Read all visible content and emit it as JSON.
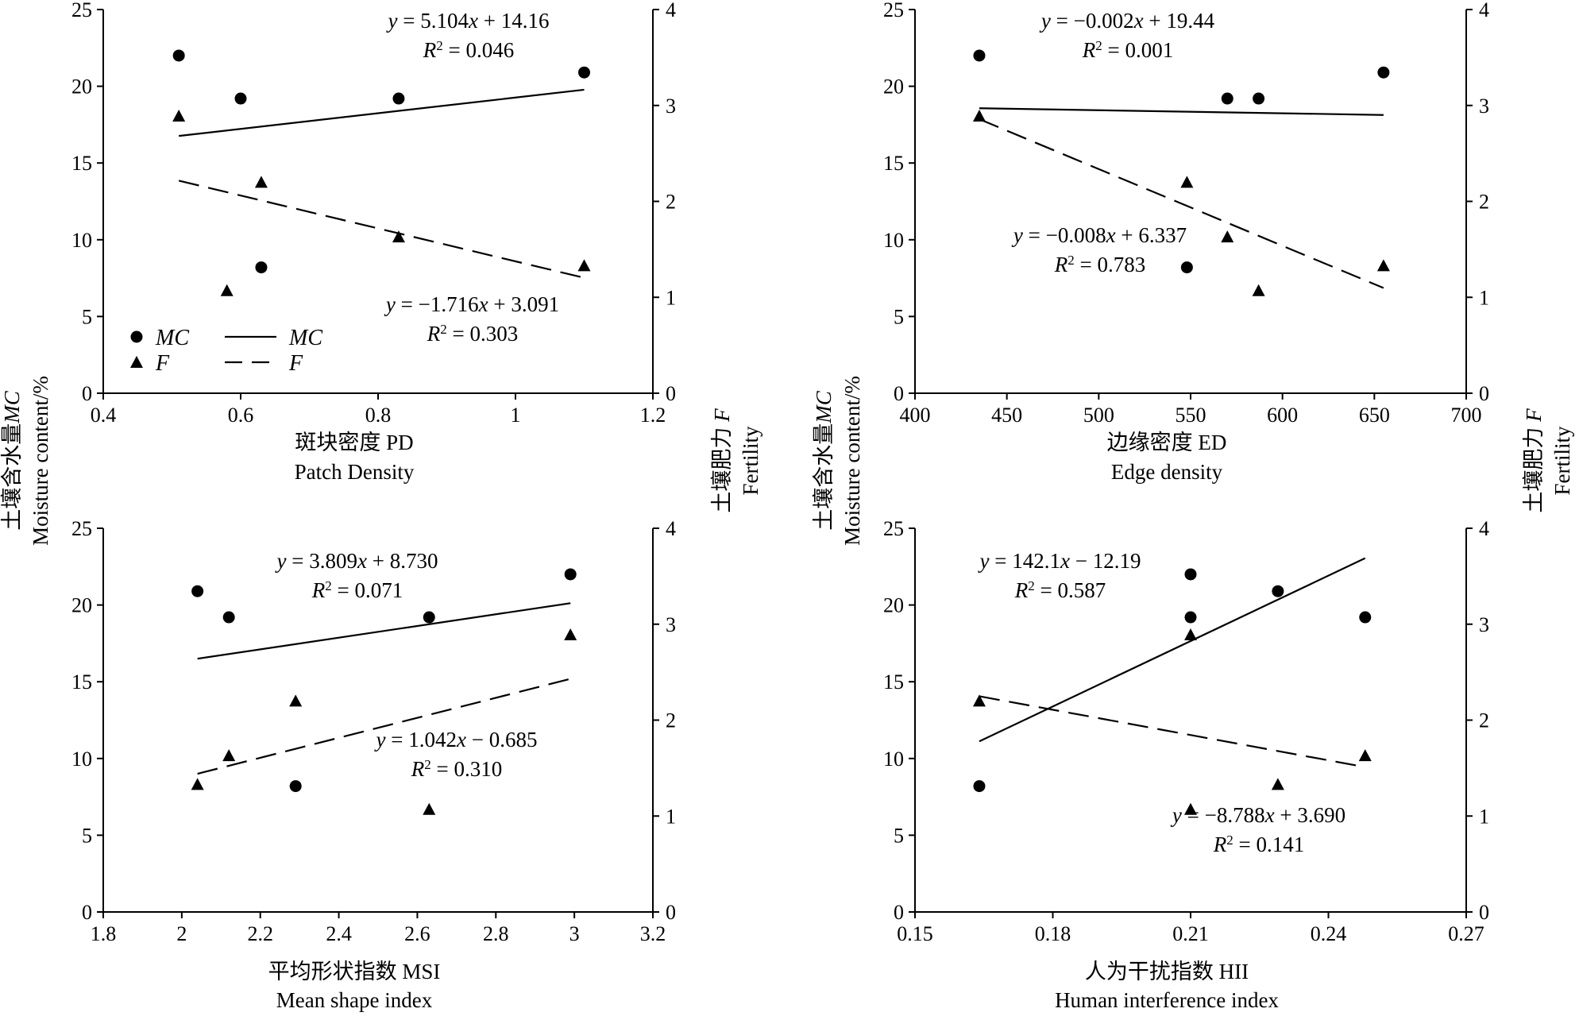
{
  "y_left_label": {
    "cn": "土壤含水量",
    "sym": "MC",
    "en": "Moisture content/%"
  },
  "y_right_label": {
    "cn": "土壤肥力",
    "sym": "F",
    "en": "Fertility"
  },
  "legend": {
    "mc_points": "MC",
    "f_points": "F",
    "mc_line": "MC",
    "f_line": "F"
  },
  "chart_data": [
    {
      "type": "scatter",
      "xlabel_cn": "斑块密度  PD",
      "xlabel_en": "Patch Density",
      "xlim": [
        0.4,
        1.2
      ],
      "xticks": [
        0.4,
        0.6,
        0.8,
        1.0,
        1.2
      ],
      "xtick_labels": [
        "0.4",
        "0.6",
        "0.8",
        "1",
        "1.2"
      ],
      "ylim_left": [
        0,
        25
      ],
      "yticks_left": [
        0,
        5,
        10,
        15,
        20,
        25
      ],
      "ylim_right": [
        0,
        4
      ],
      "yticks_right": [
        0,
        1,
        2,
        3,
        4
      ],
      "mc_points": [
        [
          0.51,
          22.0
        ],
        [
          0.6,
          19.2
        ],
        [
          0.63,
          8.2
        ],
        [
          0.83,
          19.2
        ],
        [
          1.1,
          20.9
        ]
      ],
      "f_points": [
        [
          0.51,
          2.89
        ],
        [
          0.58,
          1.07
        ],
        [
          0.63,
          2.2
        ],
        [
          0.83,
          1.63
        ],
        [
          1.1,
          1.33
        ]
      ],
      "mc_fit": {
        "slope": 5.104,
        "intercept": 14.16,
        "x_range": [
          0.51,
          1.1
        ]
      },
      "f_fit": {
        "slope": -1.716,
        "intercept": 3.091,
        "x_range": [
          0.51,
          1.1
        ]
      },
      "mc_eq": {
        "prefix": "y = ",
        "body": "5.104x + 14.16",
        "r2": "0.046"
      },
      "f_eq": {
        "prefix": "y = ",
        "body": "−1.716x + 3.091",
        "r2": "0.303"
      }
    },
    {
      "type": "scatter",
      "xlabel_cn": "边缘密度  ED",
      "xlabel_en": "Edge density",
      "xlim": [
        400,
        700
      ],
      "xticks": [
        400,
        450,
        500,
        550,
        600,
        650,
        700
      ],
      "xtick_labels": [
        "400",
        "450",
        "500",
        "550",
        "600",
        "650",
        "700"
      ],
      "ylim_left": [
        0,
        25
      ],
      "yticks_left": [
        0,
        5,
        10,
        15,
        20,
        25
      ],
      "ylim_right": [
        0,
        4
      ],
      "yticks_right": [
        0,
        1,
        2,
        3,
        4
      ],
      "mc_points": [
        [
          435,
          22.0
        ],
        [
          548,
          8.2
        ],
        [
          570,
          19.2
        ],
        [
          587,
          19.2
        ],
        [
          655,
          20.9
        ]
      ],
      "f_points": [
        [
          435,
          2.89
        ],
        [
          548,
          2.2
        ],
        [
          570,
          1.63
        ],
        [
          587,
          1.07
        ],
        [
          655,
          1.33
        ]
      ],
      "mc_fit": {
        "slope": -0.002,
        "intercept": 19.44,
        "x_range": [
          435,
          655
        ]
      },
      "f_fit": {
        "slope": -0.008,
        "intercept": 6.337,
        "x_range": [
          435,
          655
        ]
      },
      "mc_eq": {
        "prefix": "y = ",
        "body": "−0.002x + 19.44",
        "r2": "0.001"
      },
      "f_eq": {
        "prefix": "y = ",
        "body": "−0.008x +  6.337",
        "r2": "0.783"
      }
    },
    {
      "type": "scatter",
      "xlabel_cn": "平均形状指数  MSI",
      "xlabel_en": "Mean shape index",
      "xlim": [
        1.8,
        3.2
      ],
      "xticks": [
        1.8,
        2.0,
        2.2,
        2.4,
        2.6,
        2.8,
        3.0,
        3.2
      ],
      "xtick_labels": [
        "1.8",
        "2",
        "2.2",
        "2.4",
        "2.6",
        "2.8",
        "3",
        "3.2"
      ],
      "ylim_left": [
        0,
        25
      ],
      "yticks_left": [
        0,
        5,
        10,
        15,
        20,
        25
      ],
      "ylim_right": [
        0,
        4
      ],
      "yticks_right": [
        0,
        1,
        2,
        3,
        4
      ],
      "mc_points": [
        [
          2.04,
          20.9
        ],
        [
          2.12,
          19.2
        ],
        [
          2.29,
          8.2
        ],
        [
          2.63,
          19.2
        ],
        [
          2.99,
          22.0
        ]
      ],
      "f_points": [
        [
          2.04,
          1.33
        ],
        [
          2.12,
          1.63
        ],
        [
          2.29,
          2.2
        ],
        [
          2.63,
          1.07
        ],
        [
          2.99,
          2.89
        ]
      ],
      "mc_fit": {
        "slope": 3.809,
        "intercept": 8.73,
        "x_range": [
          2.04,
          2.99
        ]
      },
      "f_fit": {
        "slope": 1.042,
        "intercept": -0.685,
        "x_range": [
          2.04,
          2.99
        ]
      },
      "mc_eq": {
        "prefix": "y = ",
        "body": "3.809x + 8.730",
        "r2": "0.071"
      },
      "f_eq": {
        "prefix": "y = ",
        "body": "1.042x −  0.685",
        "r2": " 0.310"
      }
    },
    {
      "type": "scatter",
      "xlabel_cn": "人为干扰指数  HII",
      "xlabel_en": "Human interference index",
      "xlim": [
        0.15,
        0.27
      ],
      "xticks": [
        0.15,
        0.18,
        0.21,
        0.24,
        0.27
      ],
      "xtick_labels": [
        "0.15",
        "0.18",
        "0.21",
        "0.24",
        "0.27"
      ],
      "ylim_left": [
        0,
        25
      ],
      "yticks_left": [
        0,
        5,
        10,
        15,
        20,
        25
      ],
      "ylim_right": [
        0,
        4
      ],
      "yticks_right": [
        0,
        1,
        2,
        3,
        4
      ],
      "mc_points": [
        [
          0.164,
          8.2
        ],
        [
          0.21,
          22.0
        ],
        [
          0.21,
          19.2
        ],
        [
          0.229,
          20.9
        ],
        [
          0.248,
          19.2
        ]
      ],
      "f_points": [
        [
          0.164,
          2.2
        ],
        [
          0.21,
          2.89
        ],
        [
          0.21,
          1.07
        ],
        [
          0.229,
          1.33
        ],
        [
          0.248,
          1.63
        ]
      ],
      "mc_fit": {
        "slope": 142.1,
        "intercept": -12.19,
        "x_range": [
          0.164,
          0.248
        ]
      },
      "f_fit": {
        "slope": -8.788,
        "intercept": 3.69,
        "x_range": [
          0.164,
          0.248
        ]
      },
      "mc_eq": {
        "prefix": "y = ",
        "body": "142.1x −  12.19",
        "r2": " 0.587"
      },
      "f_eq": {
        "prefix": "y = ",
        "body": "−8.788x +  3.690",
        "r2": "0.141"
      }
    }
  ]
}
